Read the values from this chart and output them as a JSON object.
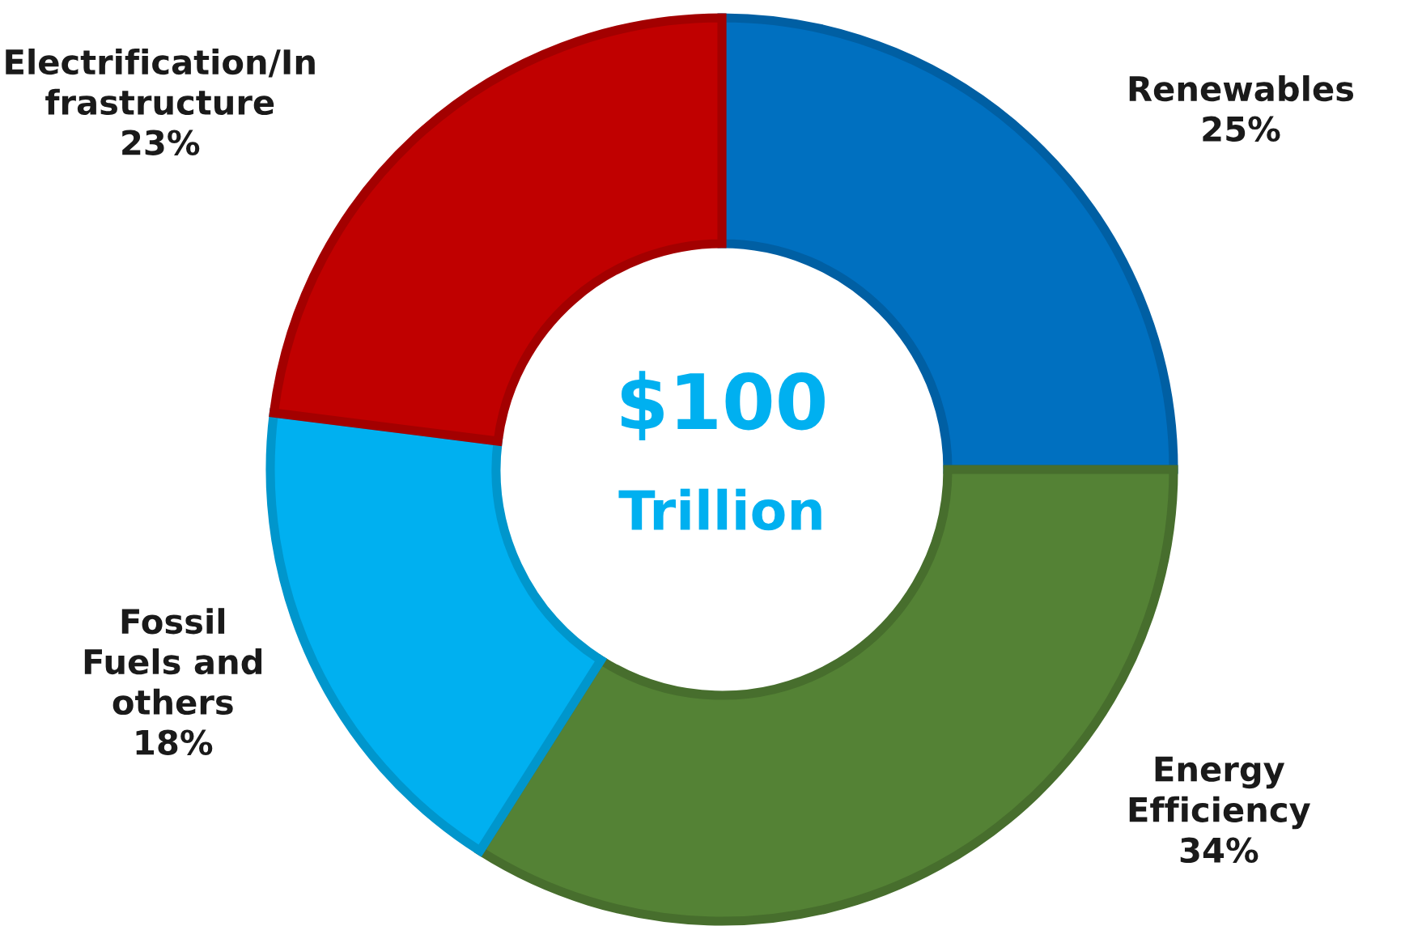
{
  "chart_data": {
    "type": "donut",
    "categories": [
      "Renewables",
      "Energy\nEfficiency",
      "Fossil\nFuels and\nothers",
      "Electrification/In\nfrastructure"
    ],
    "values": [
      25,
      34,
      18,
      23
    ],
    "colors": [
      "#0070c0",
      "#548235",
      "#00b0f0",
      "#c00000"
    ],
    "value_labels": [
      "25%",
      "34%",
      "18%",
      "23%"
    ],
    "annotations": [
      "$100",
      "Trillion"
    ]
  }
}
